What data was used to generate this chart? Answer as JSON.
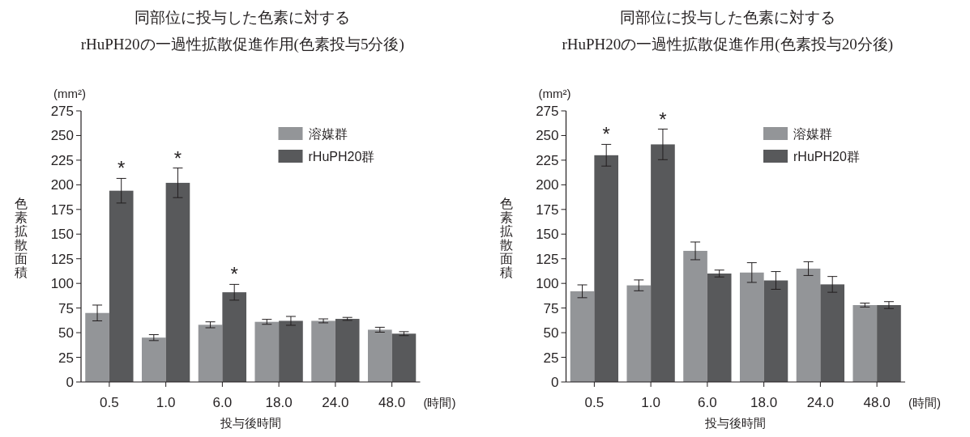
{
  "chart_data": [
    {
      "type": "bar",
      "title": "同部位に投与した色素に対する\nrHuPH20の一過性拡散促進作用(色素投与5分後)",
      "xlabel": "投与後時間",
      "ylabel": "色素拡散面積",
      "categories": [
        "0.5",
        "1.0",
        "6.0",
        "18.0",
        "24.0",
        "48.0"
      ],
      "ylim": [
        0,
        275
      ],
      "yticks": [
        0,
        25,
        50,
        75,
        100,
        125,
        150,
        175,
        200,
        225,
        250,
        275
      ],
      "grid": false,
      "legend": "top right",
      "series": [
        {
          "name": "溶媒群",
          "color": "#939598",
          "values": [
            70,
            45,
            58,
            61,
            62,
            53
          ],
          "errors": [
            8,
            3,
            3,
            2.5,
            2,
            2.5
          ]
        },
        {
          "name": "rHuPH20群",
          "color": "#58595b",
          "values": [
            194,
            202,
            91,
            62,
            64,
            49
          ],
          "errors": [
            12.5,
            15,
            8,
            4.5,
            1.5,
            2
          ]
        }
      ],
      "annotations": [
        "(mm²)",
        "(時間)",
        {
          "text": "*",
          "x": "0.5",
          "y": 194
        },
        {
          "text": "*",
          "x": "1.0",
          "y": 202
        },
        {
          "text": "*",
          "x": "6.0",
          "y": 91
        }
      ]
    },
    {
      "type": "bar",
      "title": "同部位に投与した色素に対する\nrHuPH20の一過性拡散促進作用(色素投与20分後)",
      "xlabel": "投与後時間",
      "ylabel": "色素拡散面積",
      "categories": [
        "0.5",
        "1.0",
        "6.0",
        "18.0",
        "24.0",
        "48.0"
      ],
      "ylim": [
        0,
        275
      ],
      "yticks": [
        0,
        25,
        50,
        75,
        100,
        125,
        150,
        175,
        200,
        225,
        250,
        275
      ],
      "grid": false,
      "legend": "top right",
      "series": [
        {
          "name": "溶媒群",
          "color": "#939598",
          "values": [
            92,
            98,
            133,
            111,
            115,
            78
          ],
          "errors": [
            6.5,
            5.5,
            9,
            10,
            7,
            2
          ]
        },
        {
          "name": "rHuPH20群",
          "color": "#58595b",
          "values": [
            230,
            241,
            110,
            103,
            99,
            78
          ],
          "errors": [
            11,
            15.5,
            3.5,
            9,
            8,
            3.5
          ]
        }
      ],
      "annotations": [
        "(mm²)",
        "(時間)",
        {
          "text": "*",
          "x": "0.5",
          "y": 230
        },
        {
          "text": "*",
          "x": "1.0",
          "y": 241
        }
      ]
    }
  ]
}
